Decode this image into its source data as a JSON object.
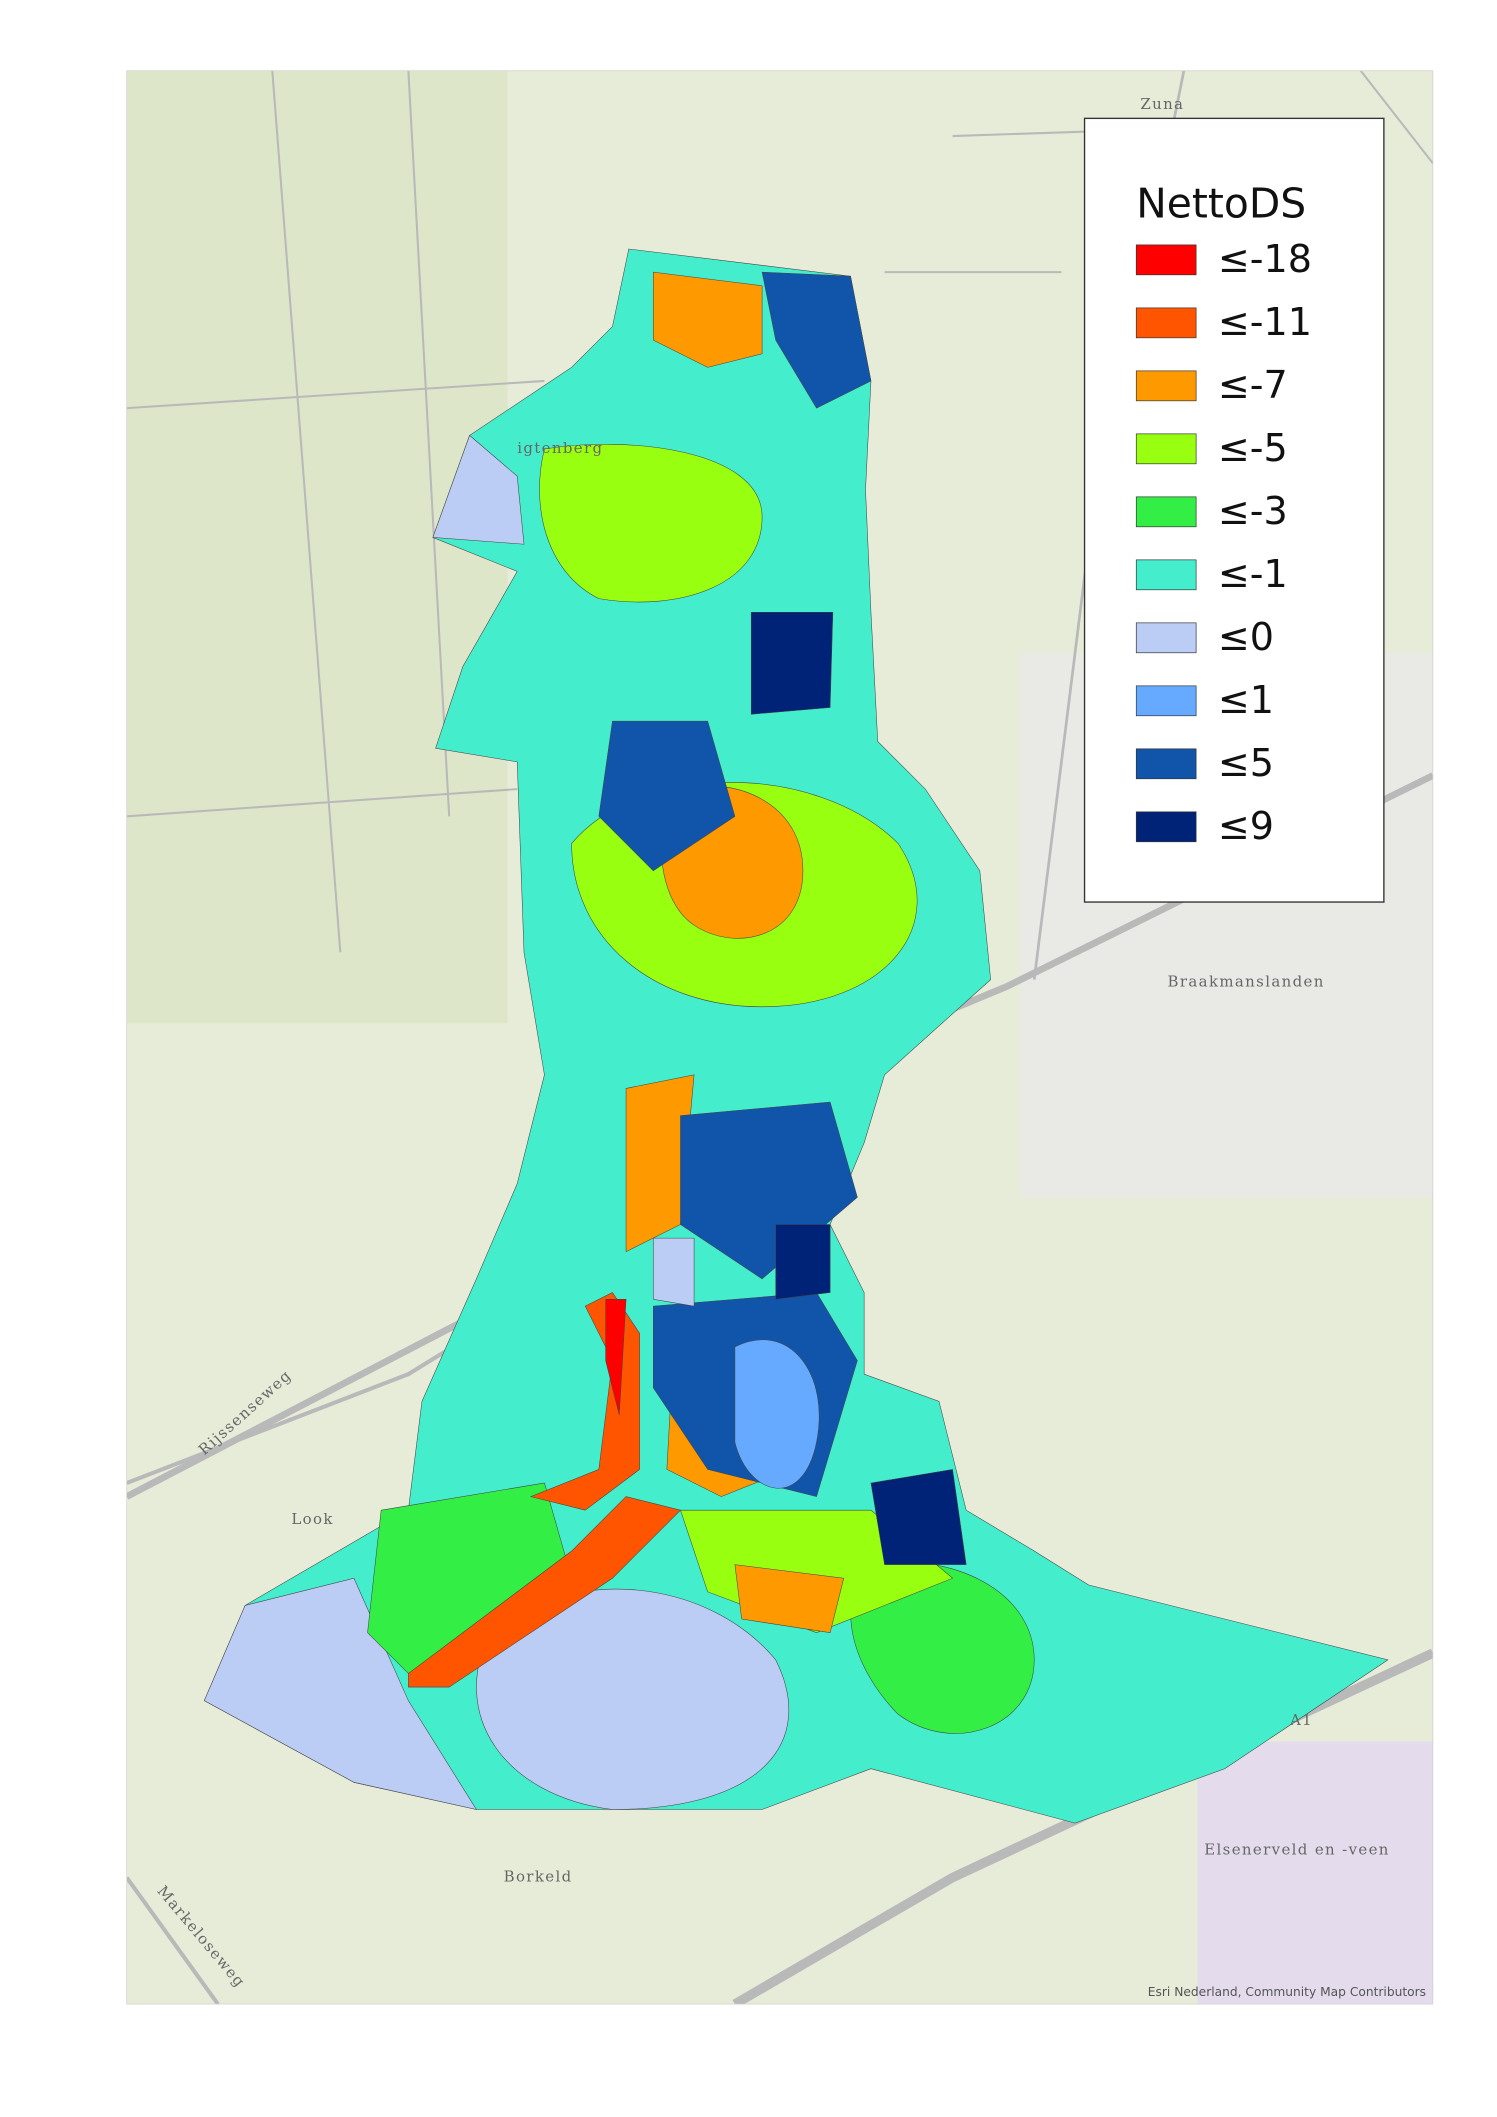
{
  "map": {
    "place_labels": [
      "Zuna",
      "igtenberg",
      "Braakmanslanden",
      "Look",
      "Borkeld",
      "Elsenerveld en -veen"
    ],
    "road_labels": [
      "Rijssenseweg",
      "Markeloseweg",
      "A1"
    ],
    "attribution": "Esri Nederland, Community Map Contributors"
  },
  "legend": {
    "title": "NettoDS",
    "items": [
      {
        "label": "≤-18",
        "color": "#ff0000"
      },
      {
        "label": "≤-11",
        "color": "#ff5500"
      },
      {
        "label": "≤-7",
        "color": "#ff9900"
      },
      {
        "label": "≤-5",
        "color": "#99ff11"
      },
      {
        "label": "≤-3",
        "color": "#33ee44"
      },
      {
        "label": "≤-1",
        "color": "#44eecc"
      },
      {
        "label": "≤0",
        "color": "#bbccf5"
      },
      {
        "label": "≤1",
        "color": "#66aaff"
      },
      {
        "label": "≤5",
        "color": "#1155aa"
      },
      {
        "label": "≤9",
        "color": "#002277"
      }
    ]
  }
}
